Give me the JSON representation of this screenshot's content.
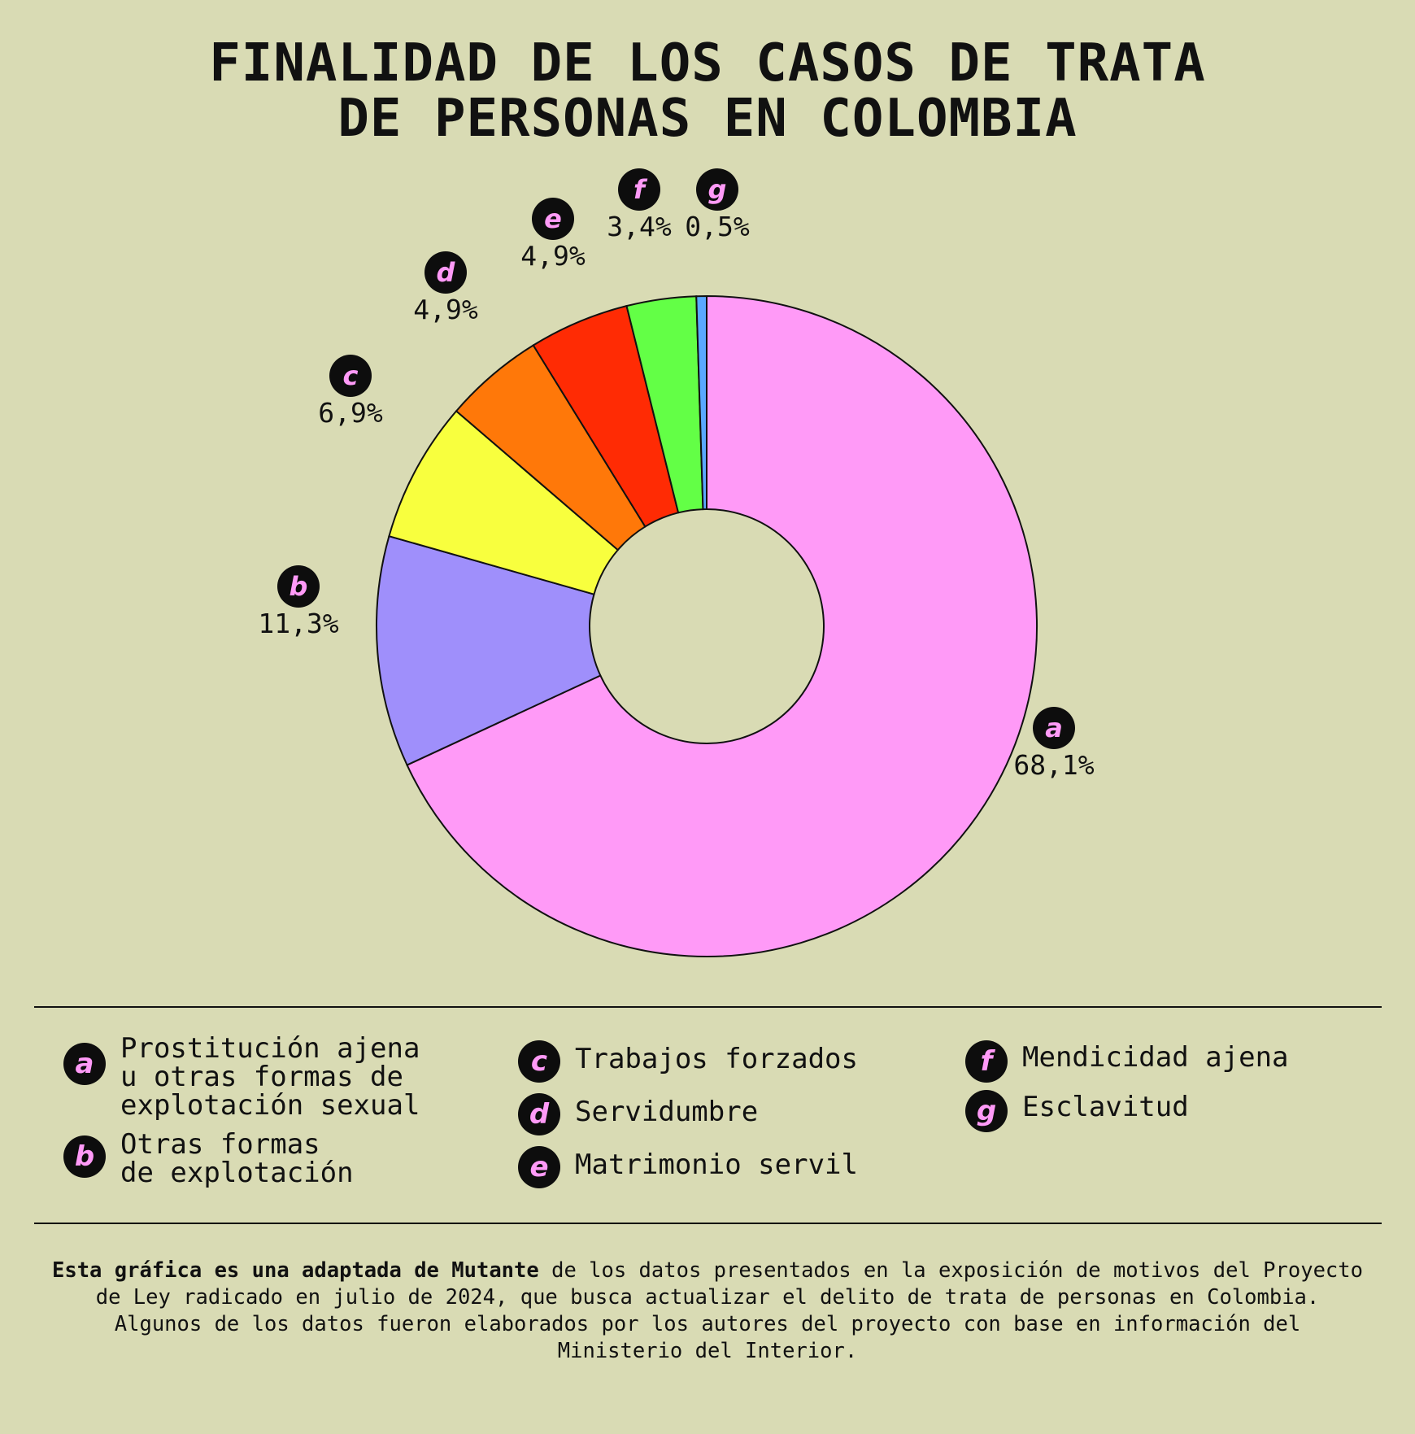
{
  "chart_data": {
    "type": "pie",
    "title": [
      "FINALIDAD DE LOS CASOS DE TRATA",
      "DE PERSONAS EN COLOMBIA"
    ],
    "slices": [
      {
        "key": "a",
        "label": "a",
        "value": 68.1,
        "value_label": "68,1%",
        "color": "#ff9af7",
        "legend": "Prostitución ajena\nu otras formas de\nexplotación sexual"
      },
      {
        "key": "b",
        "label": "b",
        "value": 11.3,
        "value_label": "11,3%",
        "color": "#9f8ffb",
        "legend": "Otras formas\nde explotación"
      },
      {
        "key": "c",
        "label": "c",
        "value": 6.9,
        "value_label": "6,9%",
        "color": "#f8ff3e",
        "legend": "Trabajos forzados"
      },
      {
        "key": "d",
        "label": "d",
        "value": 4.9,
        "value_label": "4,9%",
        "color": "#ff7809",
        "legend": "Servidumbre"
      },
      {
        "key": "e",
        "label": "e",
        "value": 4.9,
        "value_label": "4,9%",
        "color": "#ff2b04",
        "legend": "Matrimonio servil"
      },
      {
        "key": "f",
        "label": "f",
        "value": 3.4,
        "value_label": "3,4%",
        "color": "#63ff46",
        "legend": "Mendicidad ajena"
      },
      {
        "key": "g",
        "label": "g",
        "value": 0.5,
        "value_label": "0,5%",
        "color": "#5aa8ff",
        "legend": "Esclavitud"
      }
    ],
    "direction": "clockwise from top",
    "donut": true,
    "legend_placement": "bottom"
  },
  "colors": {
    "background": "#d9dbb4",
    "badge": "#0d0d0d",
    "badge_letter": "#ff9af7"
  },
  "footnote": {
    "bold": "Esta gráfica es una adaptada de Mutante",
    "text": " de los datos presentados en la exposición de motivos del Proyecto de Ley radicado en julio de 2024, que busca actualizar el delito de trata de personas en Colombia. Algunos de los datos fueron elaborados por los autores del proyecto con base en información del Ministerio del Interior."
  }
}
